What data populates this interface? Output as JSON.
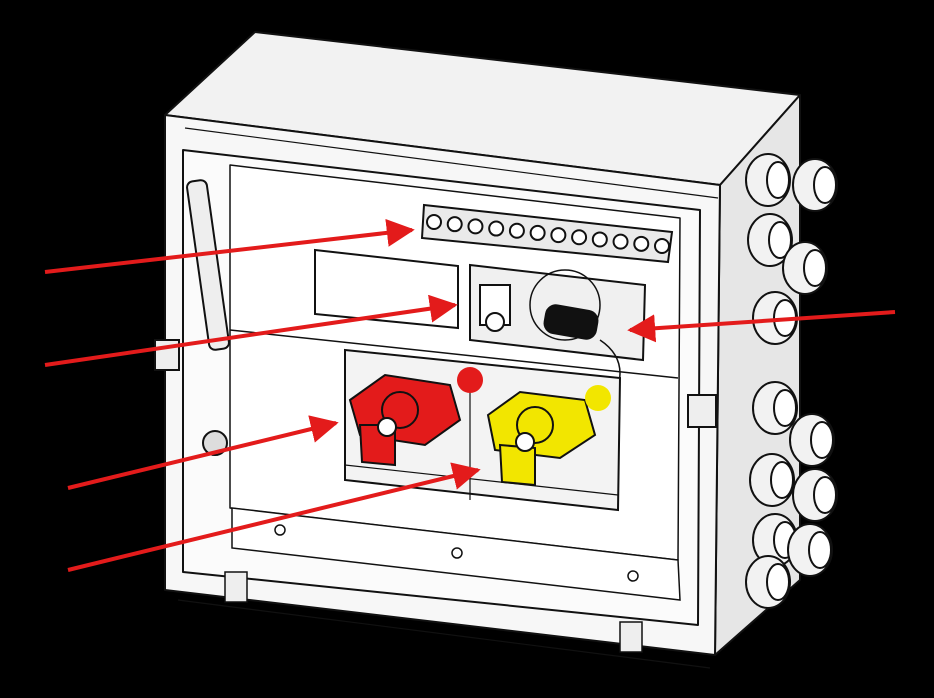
{
  "figure": {
    "background": "#000000",
    "enclosure_fill": "#f4f4f4",
    "stroke": "#111111"
  },
  "components": {
    "terminal_block": {
      "icon": "terminal-block-icon",
      "terminal_count": 12
    },
    "connector_port": {
      "icon": "connector-plug-icon"
    },
    "red_switch": {
      "icon": "lockout-switch-icon",
      "color": "#e31b1b"
    },
    "yellow_switch": {
      "icon": "lockout-switch-icon",
      "color": "#f2e600"
    },
    "cable_glands": {
      "icon": "cable-gland-icon",
      "count": 12
    }
  },
  "callouts": {
    "color": "#e31b1b",
    "items": [
      {
        "id": "terminal-block",
        "target": "terminal_block"
      },
      {
        "id": "connector",
        "target": "connector_port"
      },
      {
        "id": "connector-plug",
        "target": "connector_port"
      },
      {
        "id": "red-switch",
        "target": "red_switch"
      },
      {
        "id": "yellow-switch",
        "target": "yellow_switch"
      }
    ]
  }
}
